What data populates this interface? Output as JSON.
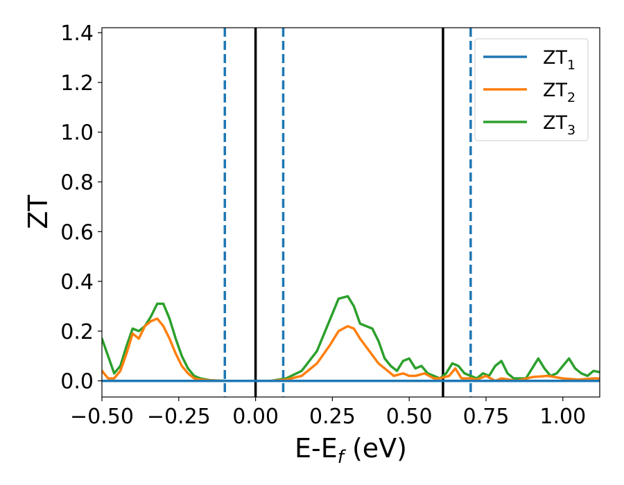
{
  "chart_data": {
    "type": "line",
    "xlabel": "E-E",
    "xlabel_sub": "f",
    "xlabel_unit": " (eV)",
    "ylabel": "ZT",
    "xlim": [
      -0.5,
      1.12
    ],
    "ylim": [
      -0.065,
      1.42
    ],
    "xticks": [
      -0.5,
      -0.25,
      0.0,
      0.25,
      0.5,
      0.75,
      1.0
    ],
    "xtick_labels": [
      "−0.50",
      "−0.25",
      "0.00",
      "0.25",
      "0.50",
      "0.75",
      "1.00"
    ],
    "yticks": [
      0.0,
      0.2,
      0.4,
      0.6,
      0.8,
      1.0,
      1.2,
      1.4
    ],
    "ytick_labels": [
      "0.0",
      "0.2",
      "0.4",
      "0.6",
      "0.8",
      "1.0",
      "1.2",
      "1.4"
    ],
    "vlines_solid": [
      0.0,
      0.61
    ],
    "vlines_dashed": [
      -0.1,
      0.09,
      0.7
    ],
    "legend_position": "top-right",
    "series": [
      {
        "name": "ZT",
        "sub": "1",
        "color": "#1f77b4",
        "x": [
          -0.5,
          1.12
        ],
        "y": [
          0.0,
          0.0
        ]
      },
      {
        "name": "ZT",
        "sub": "2",
        "color": "#ff7f0e",
        "x": [
          -0.5,
          -0.48,
          -0.46,
          -0.44,
          -0.42,
          -0.4,
          -0.38,
          -0.36,
          -0.34,
          -0.32,
          -0.3,
          -0.28,
          -0.26,
          -0.24,
          -0.22,
          -0.2,
          -0.18,
          -0.15,
          -0.1,
          -0.05,
          0.0,
          0.05,
          0.1,
          0.15,
          0.2,
          0.24,
          0.27,
          0.3,
          0.32,
          0.34,
          0.37,
          0.4,
          0.43,
          0.45,
          0.48,
          0.5,
          0.52,
          0.55,
          0.58,
          0.6,
          0.63,
          0.65,
          0.67,
          0.7,
          0.72,
          0.75,
          0.78,
          0.8,
          0.85,
          0.9,
          0.95,
          1.0,
          1.05,
          1.1,
          1.12
        ],
        "y": [
          0.04,
          0.01,
          0.01,
          0.04,
          0.11,
          0.19,
          0.17,
          0.22,
          0.24,
          0.25,
          0.22,
          0.17,
          0.11,
          0.06,
          0.03,
          0.01,
          0.005,
          0.002,
          0.0,
          0.0,
          0.0,
          0.0,
          0.005,
          0.02,
          0.07,
          0.14,
          0.2,
          0.22,
          0.21,
          0.17,
          0.12,
          0.07,
          0.04,
          0.02,
          0.03,
          0.02,
          0.02,
          0.03,
          0.01,
          0.01,
          0.02,
          0.05,
          0.01,
          0.01,
          0.005,
          0.02,
          0.0,
          0.01,
          0.0,
          0.015,
          0.02,
          0.01,
          0.005,
          0.01,
          0.01
        ]
      },
      {
        "name": "ZT",
        "sub": "3",
        "color": "#2ca02c",
        "x": [
          -0.5,
          -0.48,
          -0.46,
          -0.44,
          -0.42,
          -0.4,
          -0.38,
          -0.36,
          -0.34,
          -0.32,
          -0.3,
          -0.28,
          -0.26,
          -0.24,
          -0.22,
          -0.2,
          -0.18,
          -0.15,
          -0.1,
          -0.05,
          0.0,
          0.05,
          0.1,
          0.15,
          0.2,
          0.25,
          0.27,
          0.3,
          0.32,
          0.34,
          0.36,
          0.38,
          0.4,
          0.42,
          0.44,
          0.46,
          0.48,
          0.5,
          0.52,
          0.54,
          0.56,
          0.58,
          0.6,
          0.62,
          0.64,
          0.66,
          0.68,
          0.7,
          0.72,
          0.74,
          0.76,
          0.78,
          0.8,
          0.82,
          0.84,
          0.86,
          0.88,
          0.9,
          0.92,
          0.94,
          0.96,
          0.98,
          1.0,
          1.02,
          1.04,
          1.06,
          1.08,
          1.1,
          1.12
        ],
        "y": [
          0.17,
          0.1,
          0.03,
          0.06,
          0.14,
          0.21,
          0.2,
          0.22,
          0.26,
          0.31,
          0.31,
          0.25,
          0.17,
          0.1,
          0.05,
          0.02,
          0.01,
          0.003,
          0.0,
          0.0,
          0.0,
          0.0,
          0.01,
          0.04,
          0.12,
          0.27,
          0.33,
          0.34,
          0.3,
          0.23,
          0.22,
          0.21,
          0.16,
          0.09,
          0.06,
          0.04,
          0.08,
          0.09,
          0.05,
          0.06,
          0.03,
          0.02,
          0.01,
          0.03,
          0.07,
          0.06,
          0.03,
          0.02,
          0.01,
          0.03,
          0.02,
          0.06,
          0.08,
          0.03,
          0.01,
          0.01,
          0.01,
          0.05,
          0.09,
          0.05,
          0.02,
          0.03,
          0.06,
          0.09,
          0.05,
          0.03,
          0.02,
          0.04,
          0.035
        ]
      }
    ]
  }
}
